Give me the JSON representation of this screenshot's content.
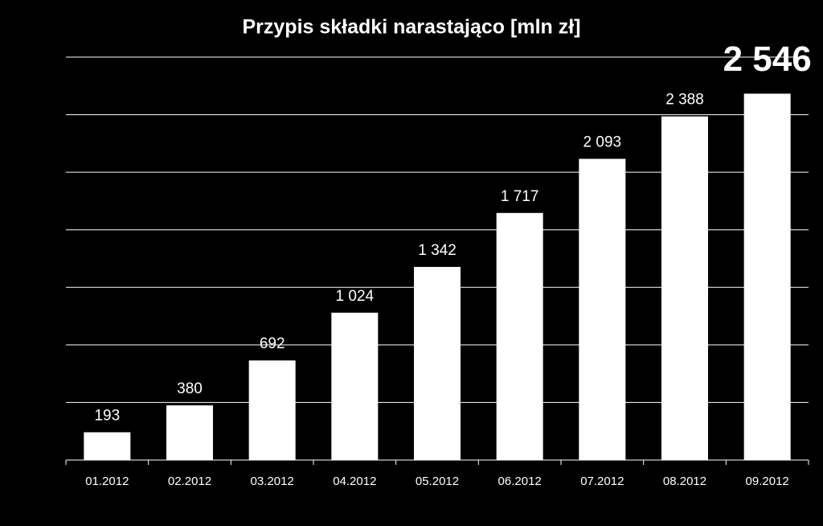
{
  "chart_data": {
    "type": "bar",
    "title": "Przypis składki narastająco [mln zł]",
    "categories": [
      "01.2012",
      "02.2012",
      "03.2012",
      "04.2012",
      "05.2012",
      "06.2012",
      "07.2012",
      "08.2012",
      "09.2012"
    ],
    "values": [
      193,
      380,
      692,
      1024,
      1342,
      1717,
      2093,
      2388,
      2546
    ],
    "value_labels": [
      "193",
      "380",
      "692",
      "1 024",
      "1 342",
      "1 717",
      "2 093",
      "2 388",
      "2 546"
    ],
    "color": "#ffffff",
    "ylim": [
      0,
      2800
    ],
    "yticks": [
      0,
      400,
      800,
      1200,
      1600,
      2000,
      2400,
      2800
    ],
    "grid": true
  }
}
